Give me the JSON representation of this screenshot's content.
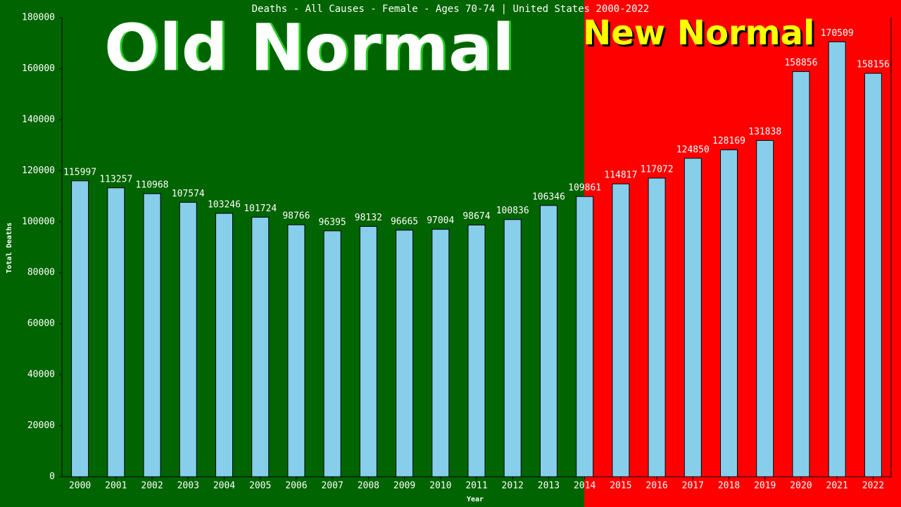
{
  "chart_data": {
    "type": "bar",
    "title": "Deaths - All Causes - Female - Ages 70-74 | United States 2000-2022",
    "x_label": "Year",
    "y_label": "Total Deaths",
    "annotations": [
      "Old Normal",
      "New Normal"
    ],
    "categories": [
      "2000",
      "2001",
      "2002",
      "2003",
      "2004",
      "2005",
      "2006",
      "2007",
      "2008",
      "2009",
      "2010",
      "2011",
      "2012",
      "2013",
      "2014",
      "2015",
      "2016",
      "2017",
      "2018",
      "2019",
      "2020",
      "2021",
      "2022"
    ],
    "values": [
      115997,
      113257,
      110968,
      107574,
      103246,
      101724,
      98766,
      96395,
      98132,
      96665,
      97004,
      98674,
      100836,
      106346,
      109861,
      114817,
      117072,
      124850,
      128169,
      131838,
      158856,
      170509,
      158156
    ],
    "color": "#87ceeb",
    "ylim": [
      0,
      180000
    ],
    "yticks": [
      0,
      20000,
      40000,
      60000,
      80000,
      100000,
      120000,
      140000,
      160000,
      180000
    ]
  }
}
